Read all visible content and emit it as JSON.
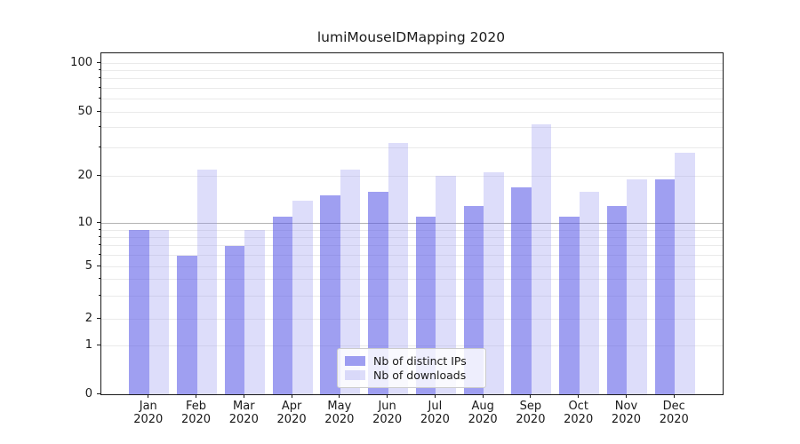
{
  "title": "lumiMouseIDMapping 2020",
  "chart_data": {
    "type": "bar",
    "title": "lumiMouseIDMapping 2020",
    "categories": [
      "Jan",
      "Feb",
      "Mar",
      "Apr",
      "May",
      "Jun",
      "Jul",
      "Aug",
      "Sep",
      "Oct",
      "Nov",
      "Dec"
    ],
    "x_year": "2020",
    "series": [
      {
        "name": "Nb of distinct IPs",
        "color": "rgba(80,80,230,0.55)",
        "values": [
          9,
          6,
          7,
          11,
          15,
          16,
          11,
          13,
          17,
          11,
          13,
          19
        ]
      },
      {
        "name": "Nb of downloads",
        "color": "rgba(150,150,240,0.32)",
        "values": [
          9,
          22,
          9,
          14,
          22,
          32,
          20,
          21,
          42,
          16,
          19,
          28
        ]
      }
    ],
    "yscale": "pseudo-log",
    "ylim": [
      0,
      115
    ],
    "yticks": [
      0,
      1,
      2,
      5,
      10,
      20,
      50,
      100
    ],
    "yticks_minor": [
      3,
      4,
      6,
      7,
      8,
      9,
      30,
      40,
      60,
      70,
      80,
      90
    ],
    "grid": "horizontal",
    "emphasized_gridline": 10,
    "legend_position": "lower center",
    "colors": {
      "grid": "#eaeaea",
      "grid_emphasis": "#b3b3b3",
      "spine": "#1a1a1a",
      "text": "#1a1a1a"
    }
  }
}
